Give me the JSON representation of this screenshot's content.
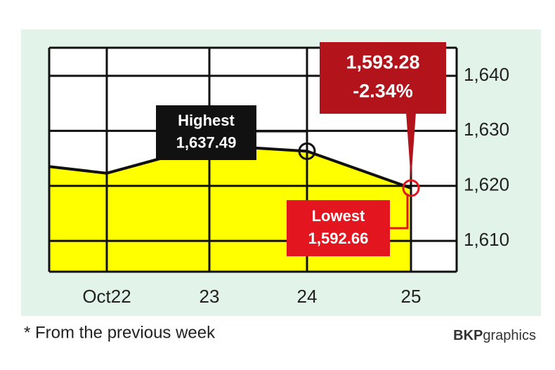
{
  "chart_data": {
    "type": "area",
    "categories": [
      null,
      "Oct22",
      "23",
      "24",
      "25"
    ],
    "values": [
      1623.5,
      1622.3,
      1627.4,
      1626.3,
      1619.6
    ],
    "color": "#111111",
    "fill": "#ffff00",
    "ylim": [
      1604.4,
      1645.1
    ],
    "yticks": [
      {
        "value": 1610,
        "label": "1,610"
      },
      {
        "value": 1620,
        "label": "1,620"
      },
      {
        "value": 1630,
        "label": "1,630"
      },
      {
        "value": 1640,
        "label": "1,640"
      }
    ],
    "grid": true,
    "annotations": [
      {
        "lines": [
          "Highest",
          "1,637.49"
        ],
        "color": "#111111"
      },
      {
        "lines": [
          "1,593.28",
          "-2.34%"
        ],
        "color": "#b3141c"
      },
      {
        "lines": [
          "Lowest",
          "1,592.66"
        ],
        "color": "#e3161f"
      }
    ],
    "footnote": "* From the previous week",
    "credit": {
      "bold": "BKP",
      "rest": "graphics"
    }
  }
}
